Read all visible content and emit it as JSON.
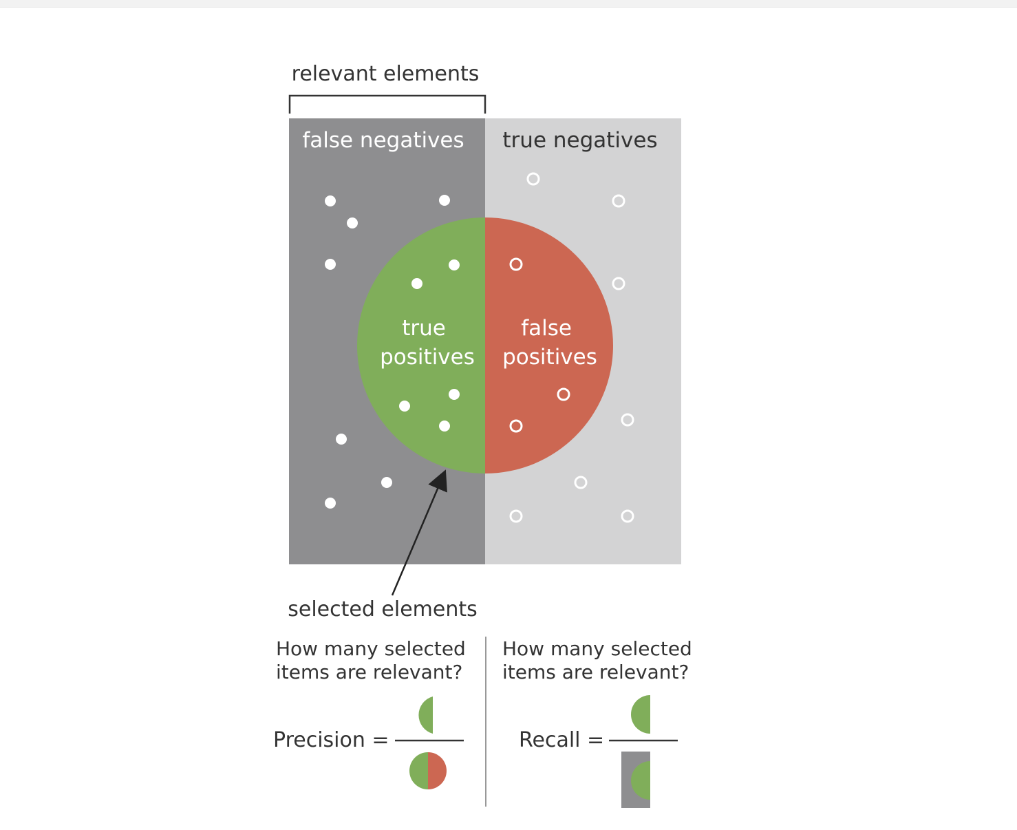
{
  "diagram": {
    "top_label": "relevant elements",
    "left_region_label": "false negatives",
    "right_region_label": "true negatives",
    "circle_left_label": [
      "true",
      "positives"
    ],
    "circle_right_label": [
      "false",
      "positives"
    ],
    "bottom_label": "selected elements"
  },
  "colors": {
    "relevant_region": "#8e8e90",
    "irrelevant_region": "#d3d3d4",
    "true_positive": "#80ae5a",
    "false_positive": "#cc6752",
    "text_dark": "#333333",
    "text_light": "#ffffff"
  },
  "precision": {
    "question": [
      "How many selected",
      "items are relevant?"
    ],
    "label": "Precision ="
  },
  "recall": {
    "question": [
      "How many selected",
      "items are relevant?"
    ],
    "label": "Recall ="
  }
}
